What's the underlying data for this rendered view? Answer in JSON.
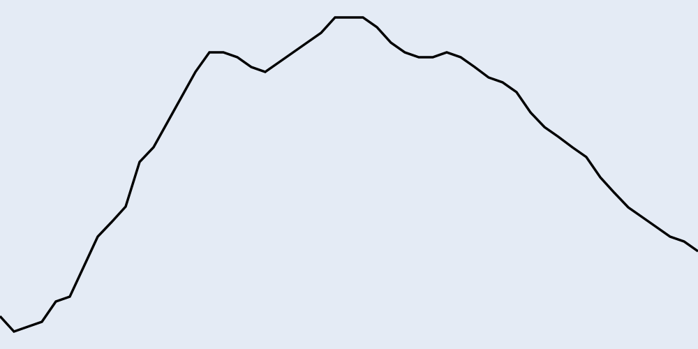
{
  "colors": {
    "background": "#e4ebf5",
    "line": "#000000"
  },
  "chart_data": {
    "type": "line",
    "title": "",
    "xlabel": "",
    "ylabel": "",
    "grid": false,
    "legend": "none",
    "xlim": [
      0,
      50
    ],
    "ylim": [
      0,
      100
    ],
    "series": [
      {
        "x": [
          0,
          1,
          2,
          3,
          4,
          5,
          6,
          7,
          8,
          9,
          10,
          11,
          12,
          13,
          14,
          15,
          16,
          17,
          18,
          19,
          20,
          21,
          22,
          23,
          24,
          25,
          26,
          27,
          28,
          29,
          30,
          31,
          32,
          33,
          34,
          35,
          36,
          37,
          38,
          39,
          40,
          41,
          42,
          43,
          44,
          45,
          46,
          47,
          48,
          49,
          50
        ],
        "values": [
          9.4,
          5.0,
          6.4,
          7.8,
          13.6,
          15.0,
          23.6,
          32.2,
          36.4,
          40.8,
          53.6,
          57.8,
          65.0,
          72.2,
          79.4,
          85.0,
          85.0,
          83.6,
          80.8,
          79.4,
          82.2,
          85.0,
          87.8,
          90.6,
          95.0,
          95.0,
          95.0,
          92.2,
          87.8,
          85.0,
          83.6,
          83.6,
          85.0,
          83.6,
          80.8,
          77.8,
          76.4,
          73.6,
          67.8,
          63.6,
          60.8,
          57.8,
          55.0,
          49.2,
          44.8,
          40.6,
          37.8,
          35.0,
          32.2,
          30.8,
          28.0
        ]
      }
    ]
  }
}
